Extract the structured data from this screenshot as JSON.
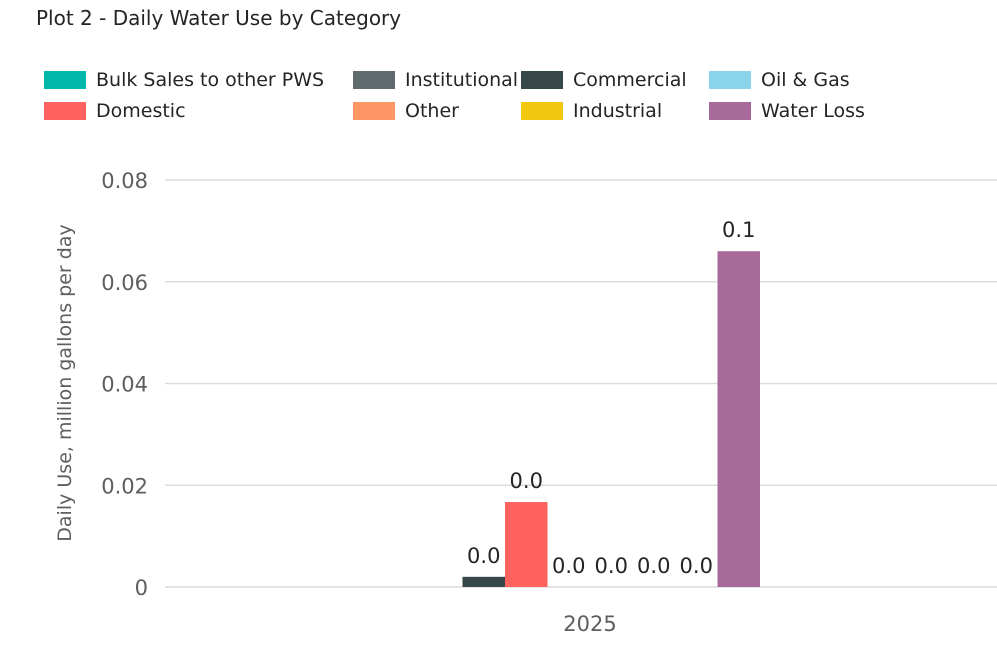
{
  "title": "Plot 2 - Daily Water Use by Category",
  "chart_data": {
    "type": "bar",
    "categories": [
      "2025"
    ],
    "ylabel": "Daily Use, million gallons per day",
    "xlabel": "",
    "ylim": [
      0,
      0.08
    ],
    "yticks": [
      0,
      0.02,
      0.04,
      0.06,
      0.08
    ],
    "ytick_labels": [
      "0",
      "0.02",
      "0.04",
      "0.06",
      "0.08"
    ],
    "grid": true,
    "legend_position": "top",
    "series": [
      {
        "name": "Bulk Sales to other PWS",
        "color": "#01B8AA",
        "values": [
          0
        ],
        "label": ""
      },
      {
        "name": "Commercial",
        "color": "#374649",
        "values": [
          0.002
        ],
        "label": "0.0"
      },
      {
        "name": "Domestic",
        "color": "#FD625E",
        "values": [
          0.0167
        ],
        "label": "0.0"
      },
      {
        "name": "Industrial",
        "color": "#F2C80F",
        "values": [
          0
        ],
        "label": "0.0"
      },
      {
        "name": "Institutional",
        "color": "#5F6B6D",
        "values": [
          0
        ],
        "label": "0.0"
      },
      {
        "name": "Oil & Gas",
        "color": "#8AD4EB",
        "values": [
          0
        ],
        "label": "0.0"
      },
      {
        "name": "Other",
        "color": "#FE9666",
        "values": [
          0
        ],
        "label": "0.0"
      },
      {
        "name": "Water Loss",
        "color": "#A66999",
        "values": [
          0.066
        ],
        "label": "0.1"
      }
    ],
    "legend_order": [
      0,
      2,
      4,
      6,
      1,
      3,
      5,
      7
    ]
  }
}
